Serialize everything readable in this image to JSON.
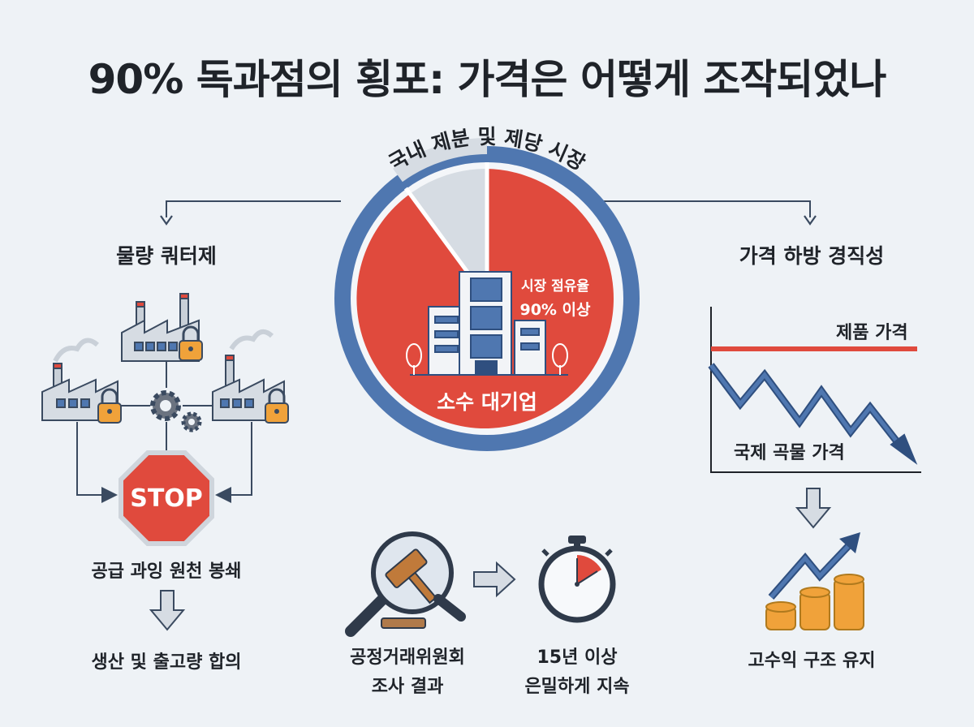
{
  "title": "90% 독과점의 횡포: 가격은 어떻게 조작되었나",
  "center": {
    "ring_label": "국내 제분 및 제당 시장",
    "share_line1": "시장 점유율",
    "share_line2": "90% 이상",
    "firm_label": "소수 대기업",
    "share_value": 0.9
  },
  "left": {
    "heading": "물량 쿼터제",
    "stop_sign": "STOP",
    "caption1": "공급 과잉 원천 봉쇄",
    "caption2": "생산 및 출고량 합의"
  },
  "right": {
    "heading": "가격 하방 경직성",
    "product_price": "제품 가격",
    "grain_price": "국제 곡물 가격",
    "result": "고수익 구조 유지"
  },
  "bottom": {
    "ftc_line1": "공정거래위원회",
    "ftc_line2": "조사 결과",
    "duration_line1": "15년 이상",
    "duration_line2": "은밀하게 지속"
  },
  "colors": {
    "red": "#e04a3d",
    "blue": "#4f77b0",
    "dark_blue": "#2f4f7f",
    "gray": "#d6dce3",
    "orange": "#f0a23a"
  }
}
